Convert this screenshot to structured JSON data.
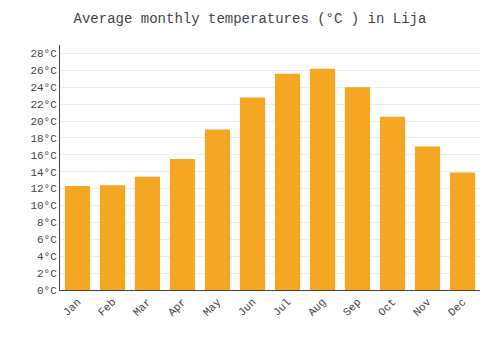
{
  "chart_data": {
    "type": "bar",
    "title": "Average monthly temperatures (°C ) in Lija",
    "categories": [
      "Jan",
      "Feb",
      "Mar",
      "Apr",
      "May",
      "Jun",
      "Jul",
      "Aug",
      "Sep",
      "Oct",
      "Nov",
      "Dec"
    ],
    "values": [
      12.3,
      12.4,
      13.4,
      15.5,
      19.0,
      22.8,
      25.6,
      26.2,
      24.0,
      20.5,
      17.0,
      13.9
    ],
    "color": "#F5A623",
    "ylim": [
      0,
      29
    ],
    "yticks": [
      {
        "value": 0,
        "label": "0°C"
      },
      {
        "value": 2,
        "label": "2°C"
      },
      {
        "value": 4,
        "label": "4°C"
      },
      {
        "value": 6,
        "label": "6°C"
      },
      {
        "value": 8,
        "label": "8°C"
      },
      {
        "value": 10,
        "label": "10°C"
      },
      {
        "value": 12,
        "label": "12°C"
      },
      {
        "value": 14,
        "label": "14°C"
      },
      {
        "value": 16,
        "label": "16°C"
      },
      {
        "value": 18,
        "label": "18°C"
      },
      {
        "value": 20,
        "label": "20°C"
      },
      {
        "value": 22,
        "label": "22°C"
      },
      {
        "value": 24,
        "label": "24°C"
      },
      {
        "value": 26,
        "label": "26°C"
      },
      {
        "value": 28,
        "label": "28°C"
      }
    ],
    "grid": true
  }
}
